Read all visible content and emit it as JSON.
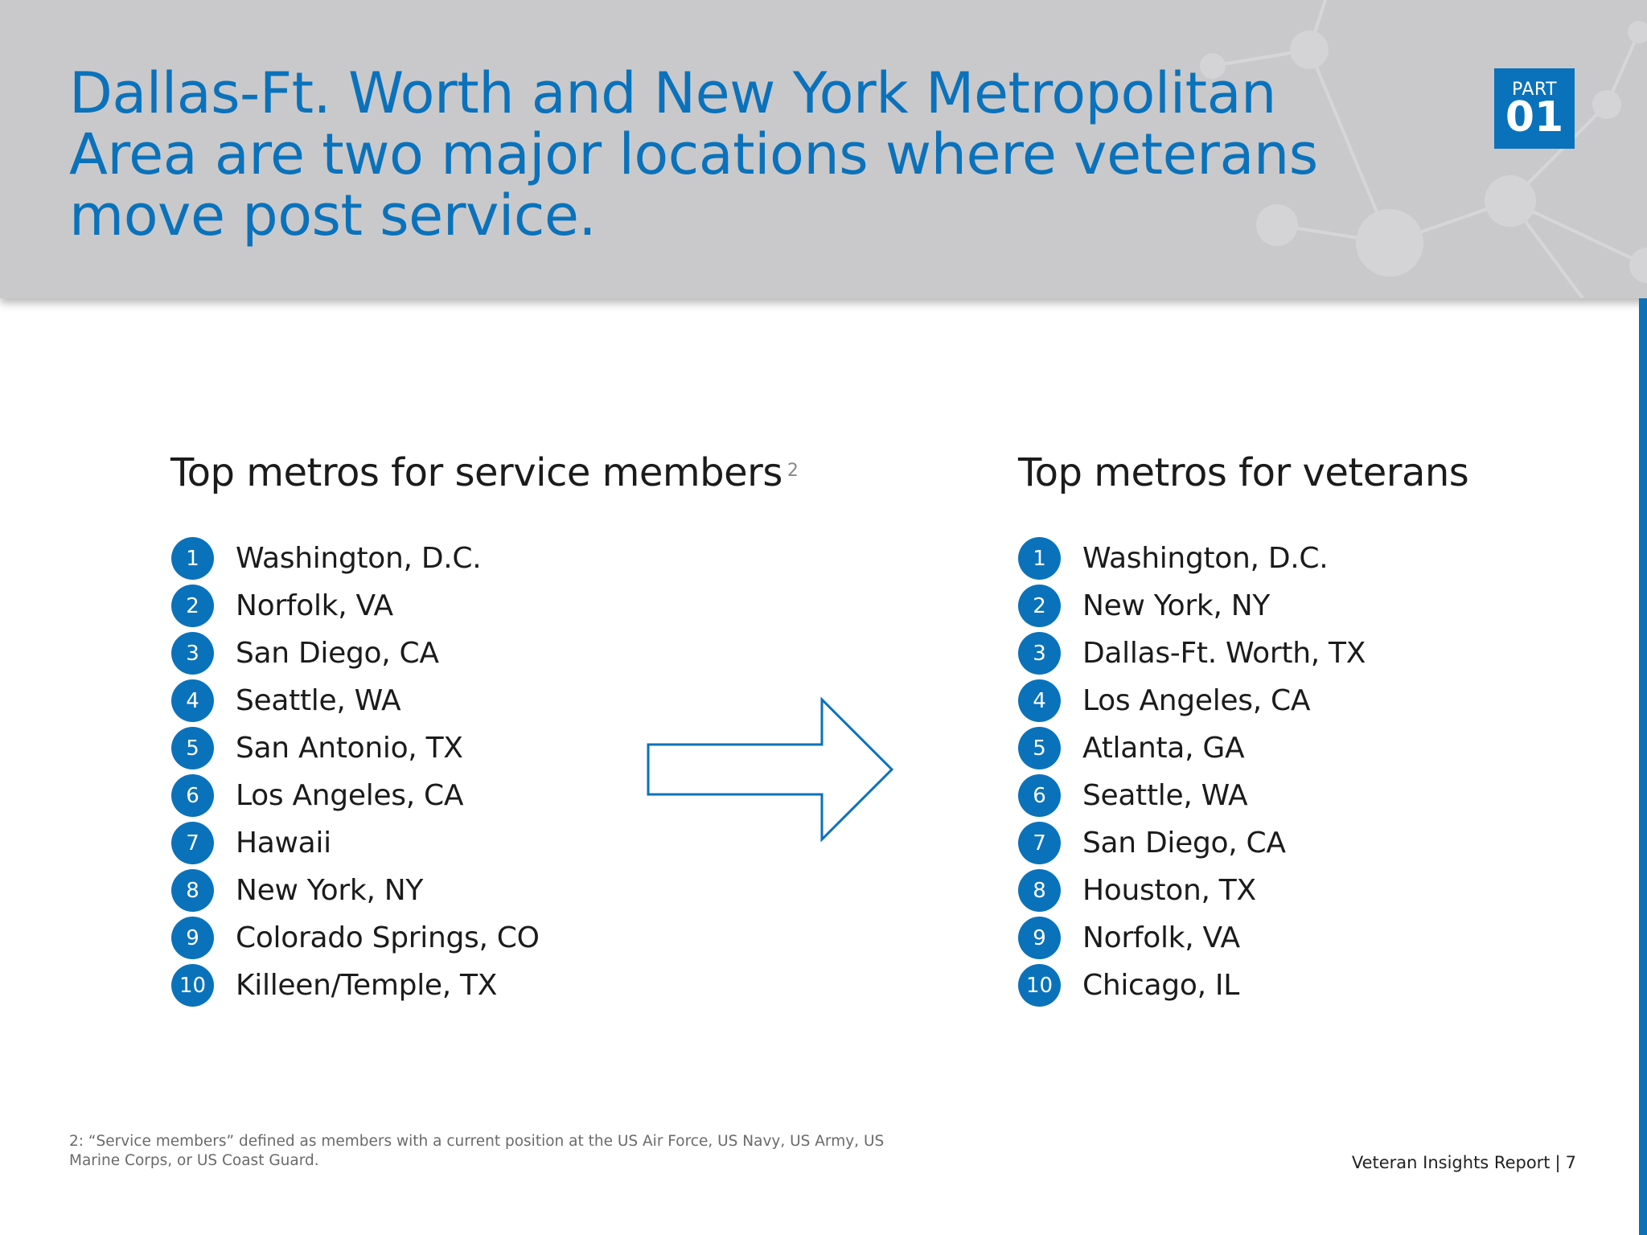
{
  "header": {
    "title": "Dallas-Ft. Worth and New York Metropolitan Area are two major locations where veterans move post service.",
    "part_label": "PART",
    "part_number": "01"
  },
  "left_list": {
    "title": "Top metros for service members",
    "footnote_ref": "2",
    "items": [
      {
        "rank": "1",
        "name": "Washington, D.C."
      },
      {
        "rank": "2",
        "name": "Norfolk, VA"
      },
      {
        "rank": "3",
        "name": "San Diego, CA"
      },
      {
        "rank": "4",
        "name": "Seattle, WA"
      },
      {
        "rank": "5",
        "name": "San Antonio, TX"
      },
      {
        "rank": "6",
        "name": "Los Angeles, CA"
      },
      {
        "rank": "7",
        "name": "Hawaii"
      },
      {
        "rank": "8",
        "name": "New York, NY"
      },
      {
        "rank": "9",
        "name": "Colorado Springs, CO"
      },
      {
        "rank": "10",
        "name": "Killeen/Temple, TX"
      }
    ]
  },
  "right_list": {
    "title": "Top metros for veterans",
    "items": [
      {
        "rank": "1",
        "name": "Washington, D.C."
      },
      {
        "rank": "2",
        "name": "New York, NY"
      },
      {
        "rank": "3",
        "name": "Dallas-Ft. Worth, TX"
      },
      {
        "rank": "4",
        "name": "Los Angeles, CA"
      },
      {
        "rank": "5",
        "name": "Atlanta, GA"
      },
      {
        "rank": "6",
        "name": "Seattle, WA"
      },
      {
        "rank": "7",
        "name": "San Diego, CA"
      },
      {
        "rank": "8",
        "name": "Houston, TX"
      },
      {
        "rank": "9",
        "name": "Norfolk, VA"
      },
      {
        "rank": "10",
        "name": "Chicago, IL"
      }
    ]
  },
  "footnote": "2: “Service members” defined as members with a current position at the US Air Force, US Navy, US Army, US Marine Corps, or US Coast Guard.",
  "footer": {
    "report_name": "Veteran Insights Report",
    "separator": "|",
    "page_number": "7"
  },
  "colors": {
    "accent": "#0a72bb",
    "header_background": "#c9c9cb",
    "text": "#1b1b1b"
  },
  "icons": {
    "arrow": "right-arrow-outline-icon",
    "header_decoration": "molecule-network-icon"
  }
}
